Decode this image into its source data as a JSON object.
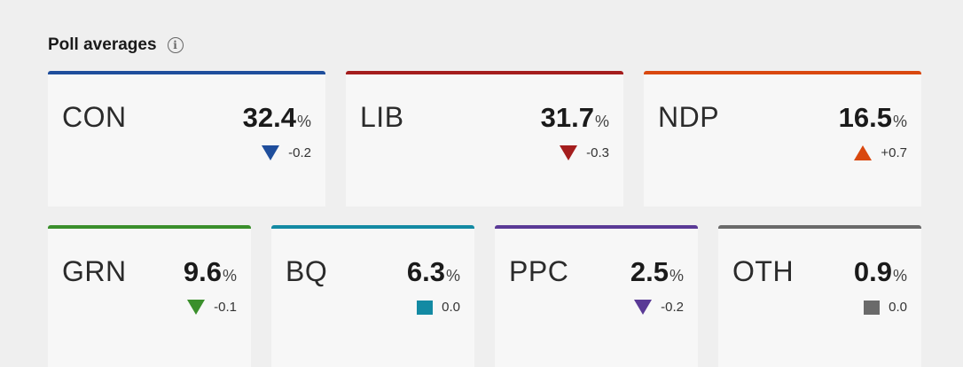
{
  "header": {
    "title": "Poll averages",
    "info_icon": "info-icon"
  },
  "rows": [
    [
      {
        "party": "CON",
        "value": "32.4",
        "unit": "%",
        "change": "-0.2",
        "direction": "down",
        "color": "#1f4e9c"
      },
      {
        "party": "LIB",
        "value": "31.7",
        "unit": "%",
        "change": "-0.3",
        "direction": "down",
        "color": "#a41d1d"
      },
      {
        "party": "NDP",
        "value": "16.5",
        "unit": "%",
        "change": "+0.7",
        "direction": "up",
        "color": "#d9480f"
      }
    ],
    [
      {
        "party": "GRN",
        "value": "9.6",
        "unit": "%",
        "change": "-0.1",
        "direction": "down",
        "color": "#3a8f2b"
      },
      {
        "party": "BQ",
        "value": "6.3",
        "unit": "%",
        "change": "0.0",
        "direction": "same",
        "color": "#138aa3"
      },
      {
        "party": "PPC",
        "value": "2.5",
        "unit": "%",
        "change": "-0.2",
        "direction": "down",
        "color": "#5a3a96"
      },
      {
        "party": "OTH",
        "value": "0.9",
        "unit": "%",
        "change": "0.0",
        "direction": "same",
        "color": "#6a6a6a"
      }
    ]
  ]
}
